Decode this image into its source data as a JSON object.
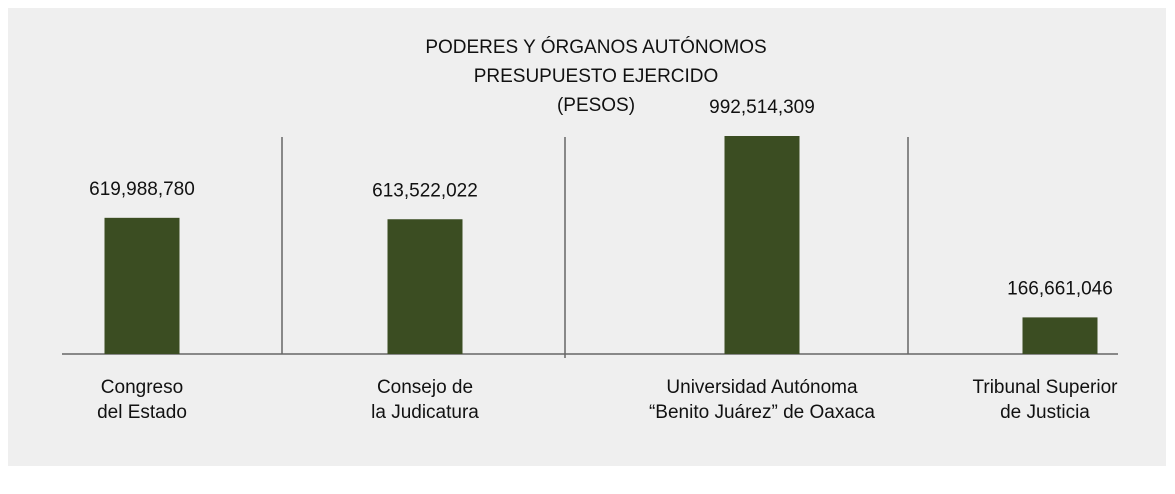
{
  "chart_data": {
    "type": "bar",
    "title": "PODERES Y ÓRGANOS AUTÓNOMOS",
    "subtitle": "PRESUPUESTO EJERCIDO",
    "unit_label": "(PESOS)",
    "categories": [
      [
        "Congreso",
        "del Estado"
      ],
      [
        "Consejo de",
        "la Judicatura"
      ],
      [
        "Universidad Autónoma",
        "“Benito Juárez” de Oaxaca"
      ],
      [
        "Tribunal Superior",
        "de Justicia"
      ]
    ],
    "values": [
      619988780,
      613522022,
      992514309,
      166661046
    ],
    "value_labels": [
      "619,988,780",
      "613,522,022",
      "992,514,309",
      "166,661,046"
    ],
    "color": "#3b4d22"
  }
}
